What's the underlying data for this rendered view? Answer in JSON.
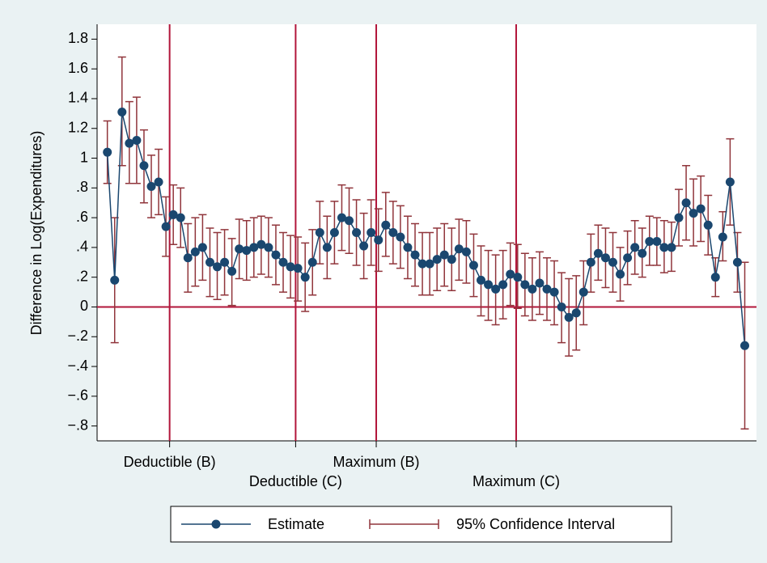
{
  "chart_data": {
    "type": "errorbar_line",
    "y_label": "Difference in Log(Expenditures)",
    "x": [
      1,
      2,
      3,
      4,
      5,
      6,
      7,
      8,
      9,
      10,
      11,
      12,
      13,
      14,
      15,
      16,
      17,
      18,
      19,
      20,
      21,
      22,
      23,
      24,
      25,
      26,
      27,
      28,
      29,
      30,
      31,
      32,
      33,
      34,
      35,
      36,
      37,
      38,
      39,
      40,
      41,
      42,
      43,
      44,
      45,
      46,
      47,
      48,
      49,
      50,
      51,
      52,
      53,
      54,
      55,
      56,
      57,
      58,
      59,
      60,
      61,
      62,
      63,
      64,
      65,
      66,
      67,
      68,
      69,
      70,
      71,
      72,
      73,
      74,
      75,
      76,
      77,
      78,
      79,
      80,
      81,
      82,
      83,
      84,
      85,
      86,
      87,
      88
    ],
    "series": [
      {
        "name": "Estimate",
        "color": "#1a476f",
        "values": [
          1.04,
          0.18,
          1.31,
          1.1,
          1.12,
          0.95,
          0.81,
          0.84,
          0.54,
          0.62,
          0.6,
          0.33,
          0.37,
          0.4,
          0.3,
          0.27,
          0.3,
          0.24,
          0.39,
          0.38,
          0.4,
          0.42,
          0.4,
          0.35,
          0.3,
          0.27,
          0.26,
          0.2,
          0.3,
          0.5,
          0.4,
          0.5,
          0.6,
          0.58,
          0.5,
          0.41,
          0.5,
          0.45,
          0.55,
          0.5,
          0.47,
          0.4,
          0.35,
          0.29,
          0.29,
          0.32,
          0.35,
          0.32,
          0.39,
          0.37,
          0.28,
          0.18,
          0.15,
          0.12,
          0.15,
          0.22,
          0.2,
          0.15,
          0.12,
          0.16,
          0.12,
          0.1,
          0.0,
          -0.07,
          -0.04,
          0.1,
          0.3,
          0.36,
          0.33,
          0.3,
          0.22,
          0.33,
          0.4,
          0.36,
          0.44,
          0.44,
          0.4,
          0.4,
          0.6,
          0.7,
          0.63,
          0.66,
          0.55,
          0.2,
          0.47,
          0.84,
          0.3,
          -0.26
        ]
      },
      {
        "name": "95% Confidence Interval",
        "color": "#90353b",
        "lower": [
          0.83,
          -0.24,
          0.95,
          0.83,
          0.83,
          0.7,
          0.6,
          0.62,
          0.34,
          0.42,
          0.4,
          0.1,
          0.14,
          0.18,
          0.07,
          0.05,
          0.08,
          0.01,
          0.19,
          0.18,
          0.2,
          0.22,
          0.2,
          0.15,
          0.1,
          0.06,
          0.04,
          -0.03,
          0.08,
          0.29,
          0.19,
          0.29,
          0.38,
          0.36,
          0.28,
          0.19,
          0.28,
          0.24,
          0.34,
          0.29,
          0.26,
          0.19,
          0.14,
          0.08,
          0.08,
          0.11,
          0.14,
          0.11,
          0.18,
          0.16,
          0.07,
          -0.06,
          -0.09,
          -0.12,
          -0.08,
          0.01,
          -0.01,
          -0.06,
          -0.09,
          -0.05,
          -0.09,
          -0.12,
          -0.24,
          -0.33,
          -0.29,
          -0.12,
          0.1,
          0.18,
          0.13,
          0.1,
          0.04,
          0.15,
          0.22,
          0.2,
          0.28,
          0.28,
          0.23,
          0.24,
          0.41,
          0.45,
          0.41,
          0.44,
          0.35,
          0.07,
          0.31,
          0.55,
          0.1,
          -0.82
        ],
        "upper": [
          1.25,
          0.6,
          1.68,
          1.38,
          1.41,
          1.19,
          1.02,
          1.06,
          0.74,
          0.82,
          0.8,
          0.56,
          0.6,
          0.62,
          0.53,
          0.5,
          0.52,
          0.46,
          0.59,
          0.58,
          0.6,
          0.61,
          0.6,
          0.55,
          0.5,
          0.48,
          0.47,
          0.43,
          0.52,
          0.71,
          0.61,
          0.71,
          0.82,
          0.8,
          0.72,
          0.63,
          0.72,
          0.66,
          0.77,
          0.71,
          0.68,
          0.61,
          0.56,
          0.5,
          0.5,
          0.53,
          0.56,
          0.53,
          0.59,
          0.58,
          0.49,
          0.41,
          0.38,
          0.35,
          0.38,
          0.43,
          0.42,
          0.36,
          0.33,
          0.37,
          0.33,
          0.31,
          0.23,
          0.19,
          0.21,
          0.31,
          0.49,
          0.55,
          0.53,
          0.5,
          0.4,
          0.51,
          0.58,
          0.53,
          0.61,
          0.6,
          0.58,
          0.57,
          0.79,
          0.95,
          0.86,
          0.88,
          0.75,
          0.33,
          0.64,
          1.13,
          0.5,
          0.3
        ]
      }
    ],
    "xlim": [
      -0.4,
      89.6
    ],
    "xticks": [
      {
        "value": 9.5,
        "label": "Deductible (B)"
      },
      {
        "value": 26.7,
        "label": "Deductible (C)"
      },
      {
        "value": 37.7,
        "label": "Maximum (B)"
      },
      {
        "value": 56.8,
        "label": "Maximum (C)"
      }
    ],
    "ylim": [
      -0.9,
      1.9
    ],
    "yticks": [
      {
        "value": -0.8,
        "label": "−.8"
      },
      {
        "value": -0.6,
        "label": "−.6"
      },
      {
        "value": -0.4,
        "label": "−.4"
      },
      {
        "value": -0.2,
        "label": "−.2"
      },
      0,
      {
        "value": 0.2,
        "label": ".2"
      },
      {
        "value": 0.4,
        "label": ".4"
      },
      {
        "value": 0.6,
        "label": ".6"
      },
      {
        "value": 0.8,
        "label": ".8"
      },
      1,
      1.2,
      1.4,
      1.6,
      1.8
    ],
    "yline": 0,
    "xlines": true
  }
}
